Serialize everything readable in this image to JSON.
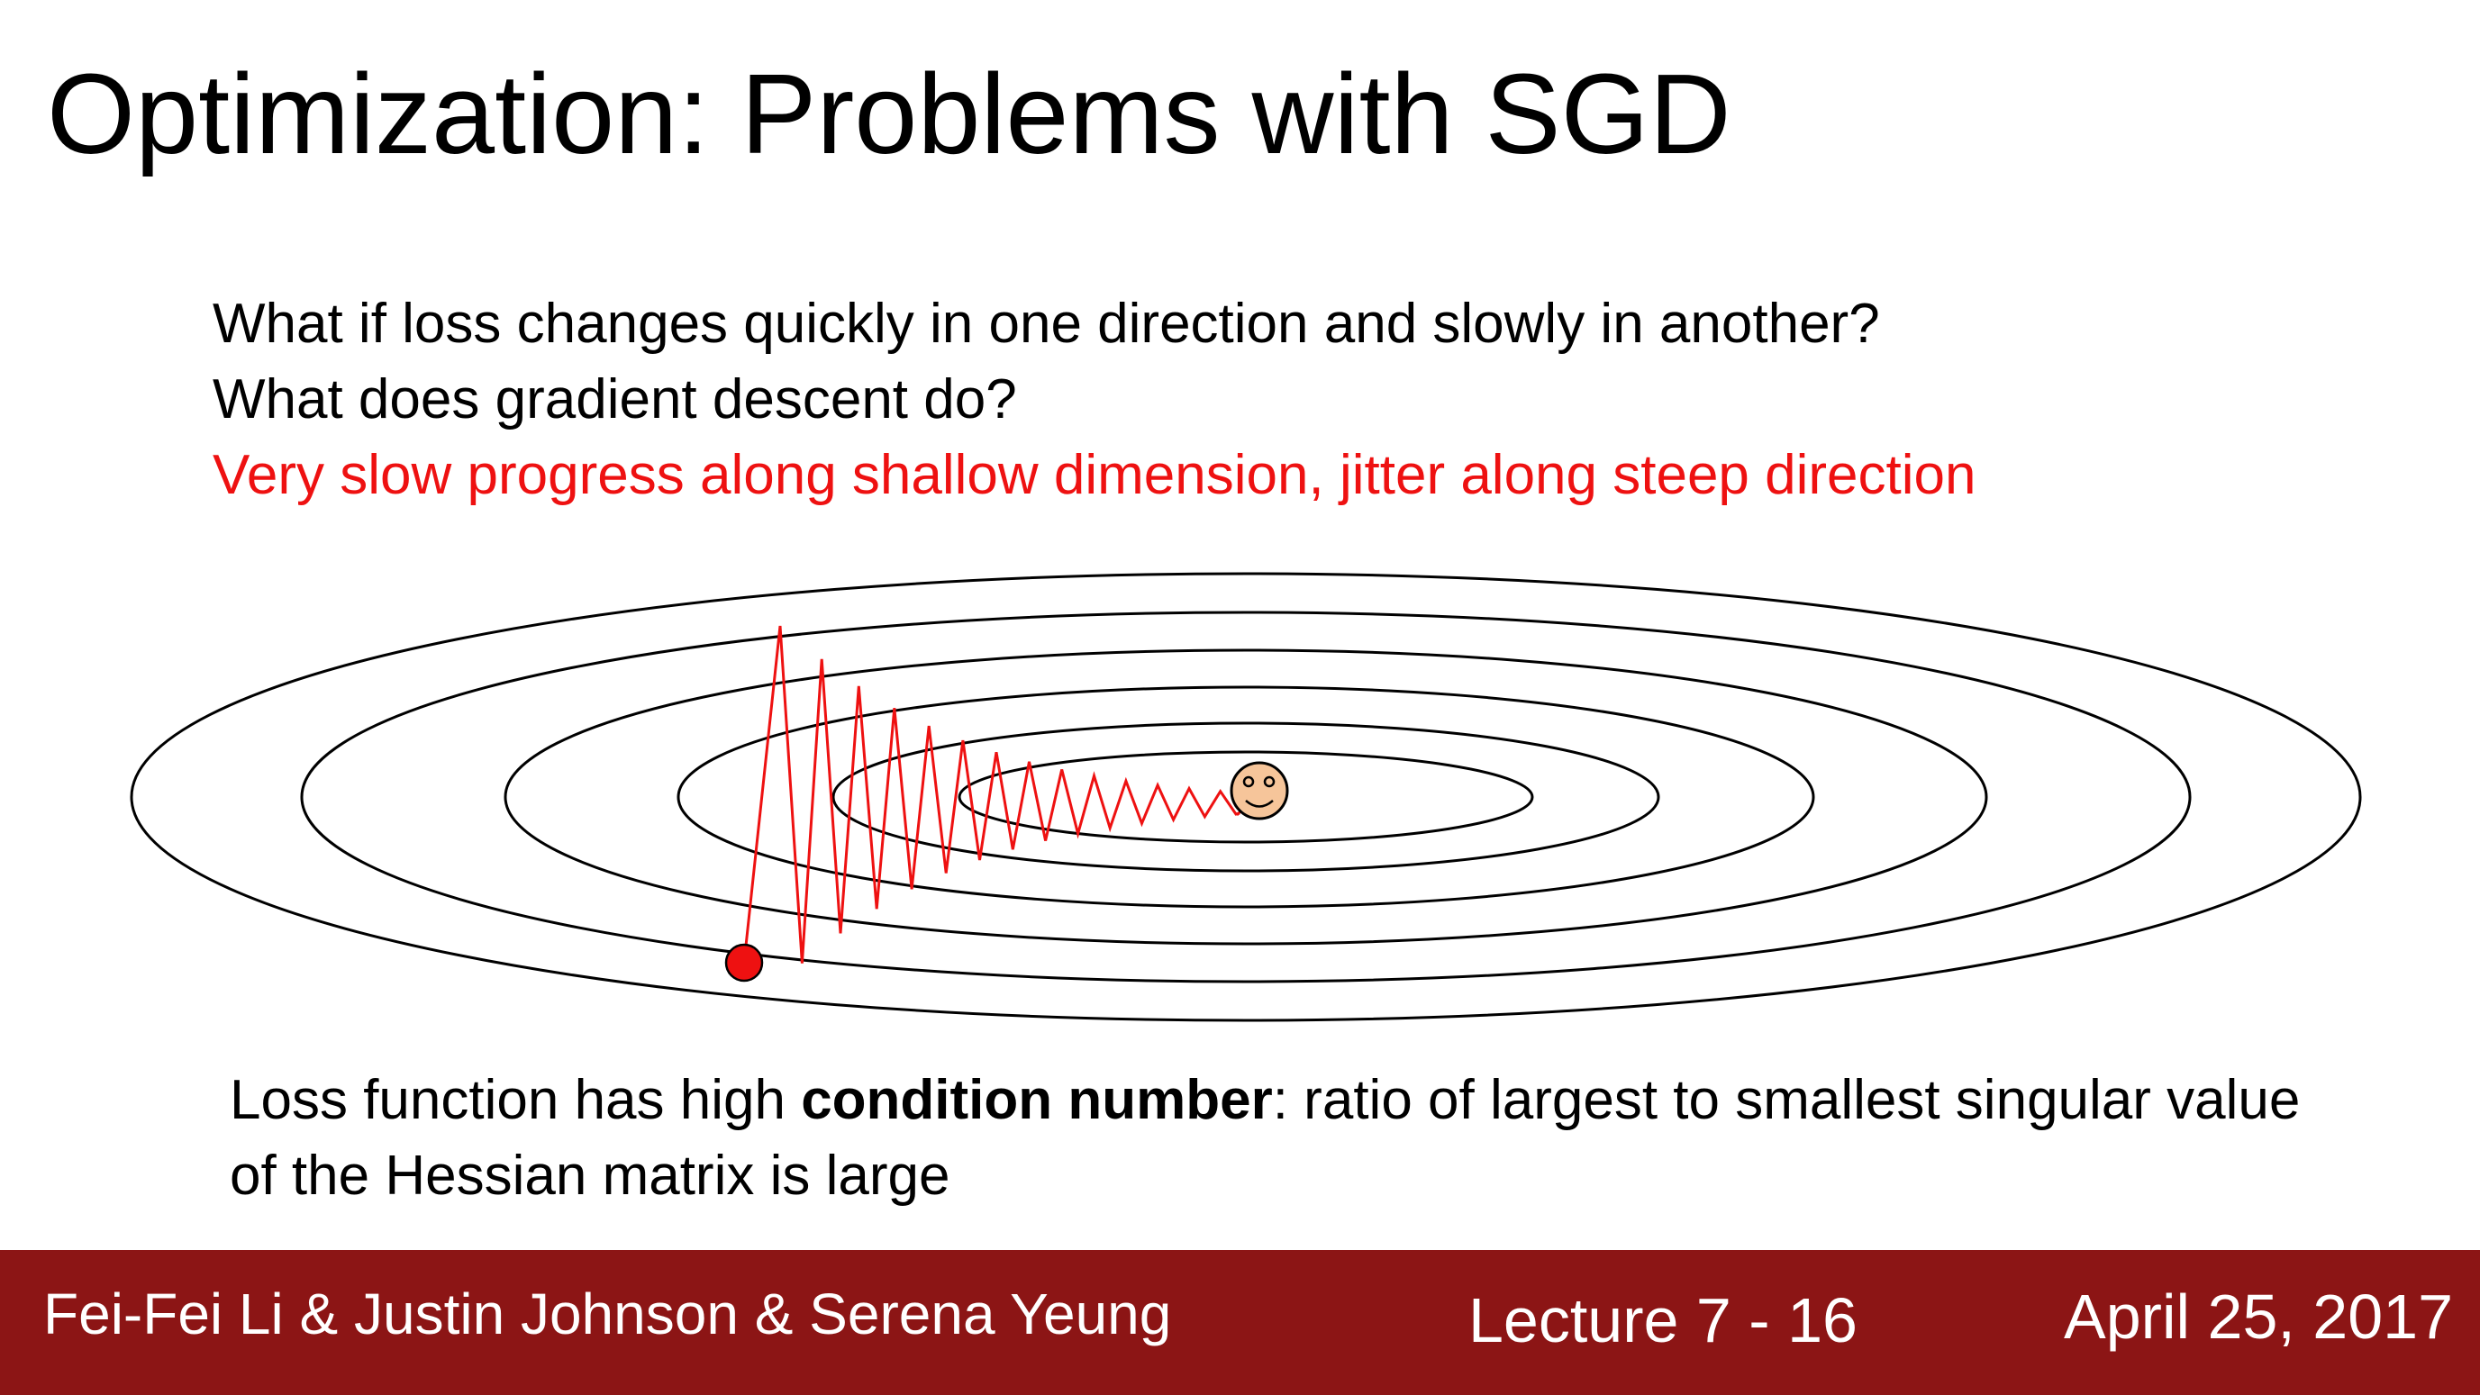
{
  "slide": {
    "title": "Optimization: Problems with SGD",
    "questions": [
      "What if loss changes quickly in one direction and slowly in another?",
      "What does gradient descent do?"
    ],
    "answer": "Very slow progress along shallow dimension, jitter along steep direction",
    "note": {
      "prefix": "Loss function has high ",
      "bold": "condition number",
      "suffix": ": ratio of largest to smallest singular value of the Hessian matrix is large"
    }
  },
  "diagram": {
    "contour_count": 6,
    "contour_color": "#000000",
    "path_color": "#ee1111",
    "start_marker_color": "#ee1111",
    "minimum_marker_color": "#f6c59a",
    "minimum_marker_icon": "smiley-face-icon"
  },
  "footer": {
    "authors": "Fei-Fei Li & Justin Johnson & Serena Yeung",
    "lecture": "Lecture 7 - 16",
    "date": "April 25, 2017",
    "background_color": "#8c1515"
  }
}
